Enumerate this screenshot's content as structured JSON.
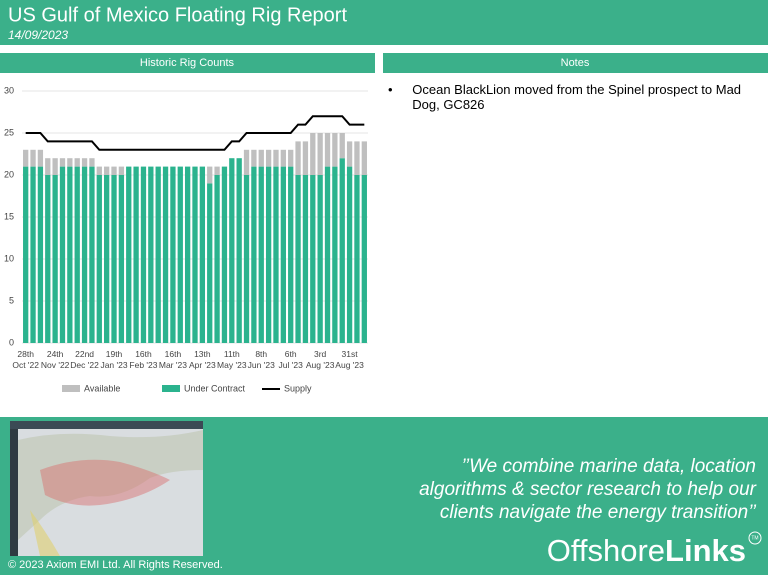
{
  "header": {
    "title": "US Gulf of Mexico Floating Rig Report",
    "date": "14/09/2023"
  },
  "chart_panel": {
    "title": "Historic Rig Counts"
  },
  "chart_data": {
    "type": "bar",
    "stacked": true,
    "categories": [
      "28th Oct '22",
      null,
      null,
      null,
      "24th Nov '22",
      null,
      null,
      null,
      "22nd Dec '22",
      null,
      null,
      null,
      "19th Jan '23",
      null,
      null,
      null,
      "16th Feb '23",
      null,
      null,
      null,
      "16th Mar '23",
      null,
      null,
      null,
      "13th Apr '23",
      null,
      null,
      null,
      "11th May '23",
      null,
      null,
      null,
      "8th Jun '23",
      null,
      null,
      null,
      "6th Jul '23",
      null,
      null,
      null,
      "3rd Aug '23",
      null,
      null,
      null,
      "31st Aug '23",
      null,
      null
    ],
    "series": [
      {
        "name": "Available",
        "color": "#bfbfbf",
        "values": [
          2,
          2,
          2,
          2,
          2,
          1,
          1,
          1,
          1,
          1,
          1,
          1,
          1,
          1,
          0,
          0,
          0,
          0,
          0,
          0,
          0,
          0,
          0,
          0,
          0,
          2,
          1,
          0,
          0,
          0,
          3,
          2,
          2,
          2,
          2,
          2,
          2,
          4,
          4,
          5,
          5,
          4,
          4,
          3,
          3,
          4,
          4
        ]
      },
      {
        "name": "Under Contract",
        "color": "#2bb38e",
        "values": [
          21,
          21,
          21,
          20,
          20,
          21,
          21,
          21,
          21,
          21,
          20,
          20,
          20,
          20,
          21,
          21,
          21,
          21,
          21,
          21,
          21,
          21,
          21,
          21,
          21,
          19,
          20,
          21,
          22,
          22,
          20,
          21,
          21,
          21,
          21,
          21,
          21,
          20,
          20,
          20,
          20,
          21,
          21,
          22,
          21,
          20,
          20
        ]
      },
      {
        "name": "Supply",
        "type": "line",
        "color": "#000000",
        "values": [
          25,
          25,
          25,
          24,
          24,
          24,
          24,
          24,
          24,
          24,
          23,
          23,
          23,
          23,
          23,
          23,
          23,
          23,
          23,
          23,
          23,
          23,
          23,
          23,
          23,
          23,
          23,
          23,
          24,
          24,
          25,
          25,
          25,
          25,
          25,
          25,
          25,
          26,
          26,
          27,
          27,
          27,
          27,
          27,
          26,
          26,
          26
        ]
      }
    ],
    "ylim": [
      0,
      30
    ],
    "yticks": [
      0,
      5,
      10,
      15,
      20,
      25,
      30
    ],
    "grid": true
  },
  "notes": {
    "title": "Notes",
    "items": [
      "Ocean BlackLion moved from the Spinel prospect to Mad Dog, GC826"
    ]
  },
  "footer": {
    "quote_lines": [
      "’’We  combine marine data, location",
      "algorithms & sector research to help our",
      "clients navigate the energy transition’’"
    ],
    "brand_plain": "Offshore",
    "brand_bold": "Links",
    "brand_mark": "TM",
    "copyright": "© 2023 Axiom EMI Ltd. All Rights Reserved."
  }
}
